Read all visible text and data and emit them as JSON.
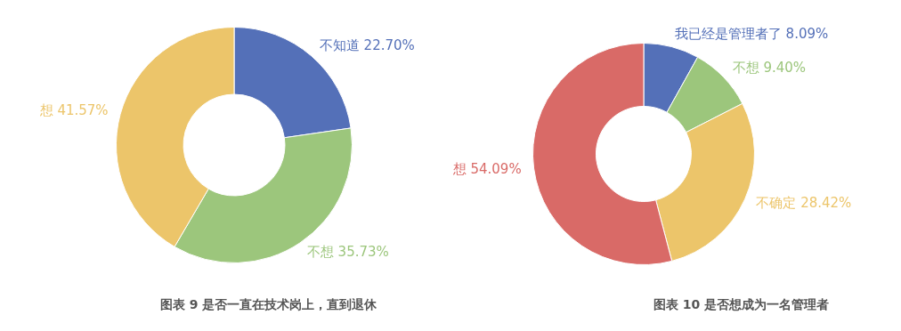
{
  "chart_data": [
    {
      "type": "donut",
      "title": "图表 9 是否一直在技术岗上，直到退休",
      "categories": [
        "不知道",
        "不想",
        "想"
      ],
      "values": [
        22.7,
        35.73,
        41.57
      ],
      "value_labels": [
        "22.70%",
        "35.73%",
        "41.57%"
      ],
      "colors": [
        "#5470b8",
        "#9cc67c",
        "#ecc56a"
      ],
      "legend": false
    },
    {
      "type": "donut",
      "title": "图表 10  是否想成为一名管理者",
      "categories": [
        "我已经是管理者了",
        "不想",
        "不确定",
        "想"
      ],
      "values": [
        8.09,
        9.4,
        28.42,
        54.09
      ],
      "value_labels": [
        "8.09%",
        "9.40%",
        "28.42%",
        "54.09%"
      ],
      "colors": [
        "#5470b8",
        "#9cc67c",
        "#ecc56a",
        "#d96a67"
      ],
      "legend": false
    }
  ]
}
